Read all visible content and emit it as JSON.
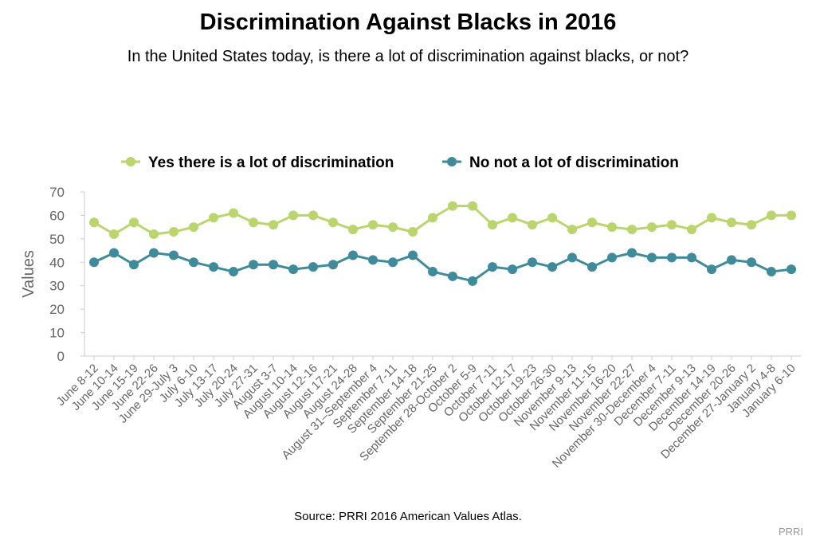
{
  "chart_data": {
    "type": "line",
    "title": "Discrimination Against Blacks in 2016",
    "subtitle": "In the United States today, is there a lot of discrimination against blacks, or not?",
    "ylabel": "Values",
    "xlabel": "",
    "ylim": [
      0,
      70
    ],
    "yticks": [
      0,
      10,
      20,
      30,
      40,
      50,
      60,
      70
    ],
    "grid": false,
    "legend_position": "top-center",
    "categories": [
      "June 8-12",
      "June 10-14",
      "June 15-19",
      "June 22-26",
      "June 29-July 3",
      "July 6-10",
      "July 13-17",
      "July 20-24",
      "July 27-31",
      "August 3-7",
      "August 10-14",
      "August 12-16",
      "August 17-21",
      "August 24-28",
      "August 31–September 4",
      "September 7-11",
      "September 14-18",
      "September 21-25",
      "September 28-October 2",
      "October 5-9",
      "October 7-11",
      "October 12-17",
      "October 19-23",
      "October 26-30",
      "November 9-13",
      "November 11-15",
      "November 16-20",
      "November 22-27",
      "November 30-December 4",
      "December 7-11",
      "December 9-13",
      "December 14-19",
      "December 20-26",
      "December 27-January 2",
      "January 4-8",
      "January 6-10"
    ],
    "series": [
      {
        "name": "Yes there is a lot of discrimination",
        "color": "#b9d56b",
        "values": [
          57,
          52,
          57,
          52,
          53,
          55,
          59,
          61,
          57,
          56,
          60,
          60,
          57,
          54,
          56,
          55,
          53,
          59,
          64,
          64,
          56,
          59,
          56,
          59,
          54,
          57,
          55,
          54,
          55,
          56,
          54,
          59,
          57,
          56,
          60,
          60
        ]
      },
      {
        "name": "No not a lot of discrimination",
        "color": "#3e8b9c",
        "values": [
          40,
          44,
          39,
          44,
          43,
          40,
          38,
          36,
          39,
          39,
          37,
          38,
          39,
          43,
          41,
          40,
          43,
          36,
          34,
          32,
          38,
          37,
          40,
          38,
          42,
          38,
          42,
          44,
          42,
          42,
          42,
          37,
          41,
          40,
          36,
          37
        ]
      }
    ]
  },
  "source": "Source: PRRI 2016 American Values Atlas.",
  "credit": "PRRI"
}
